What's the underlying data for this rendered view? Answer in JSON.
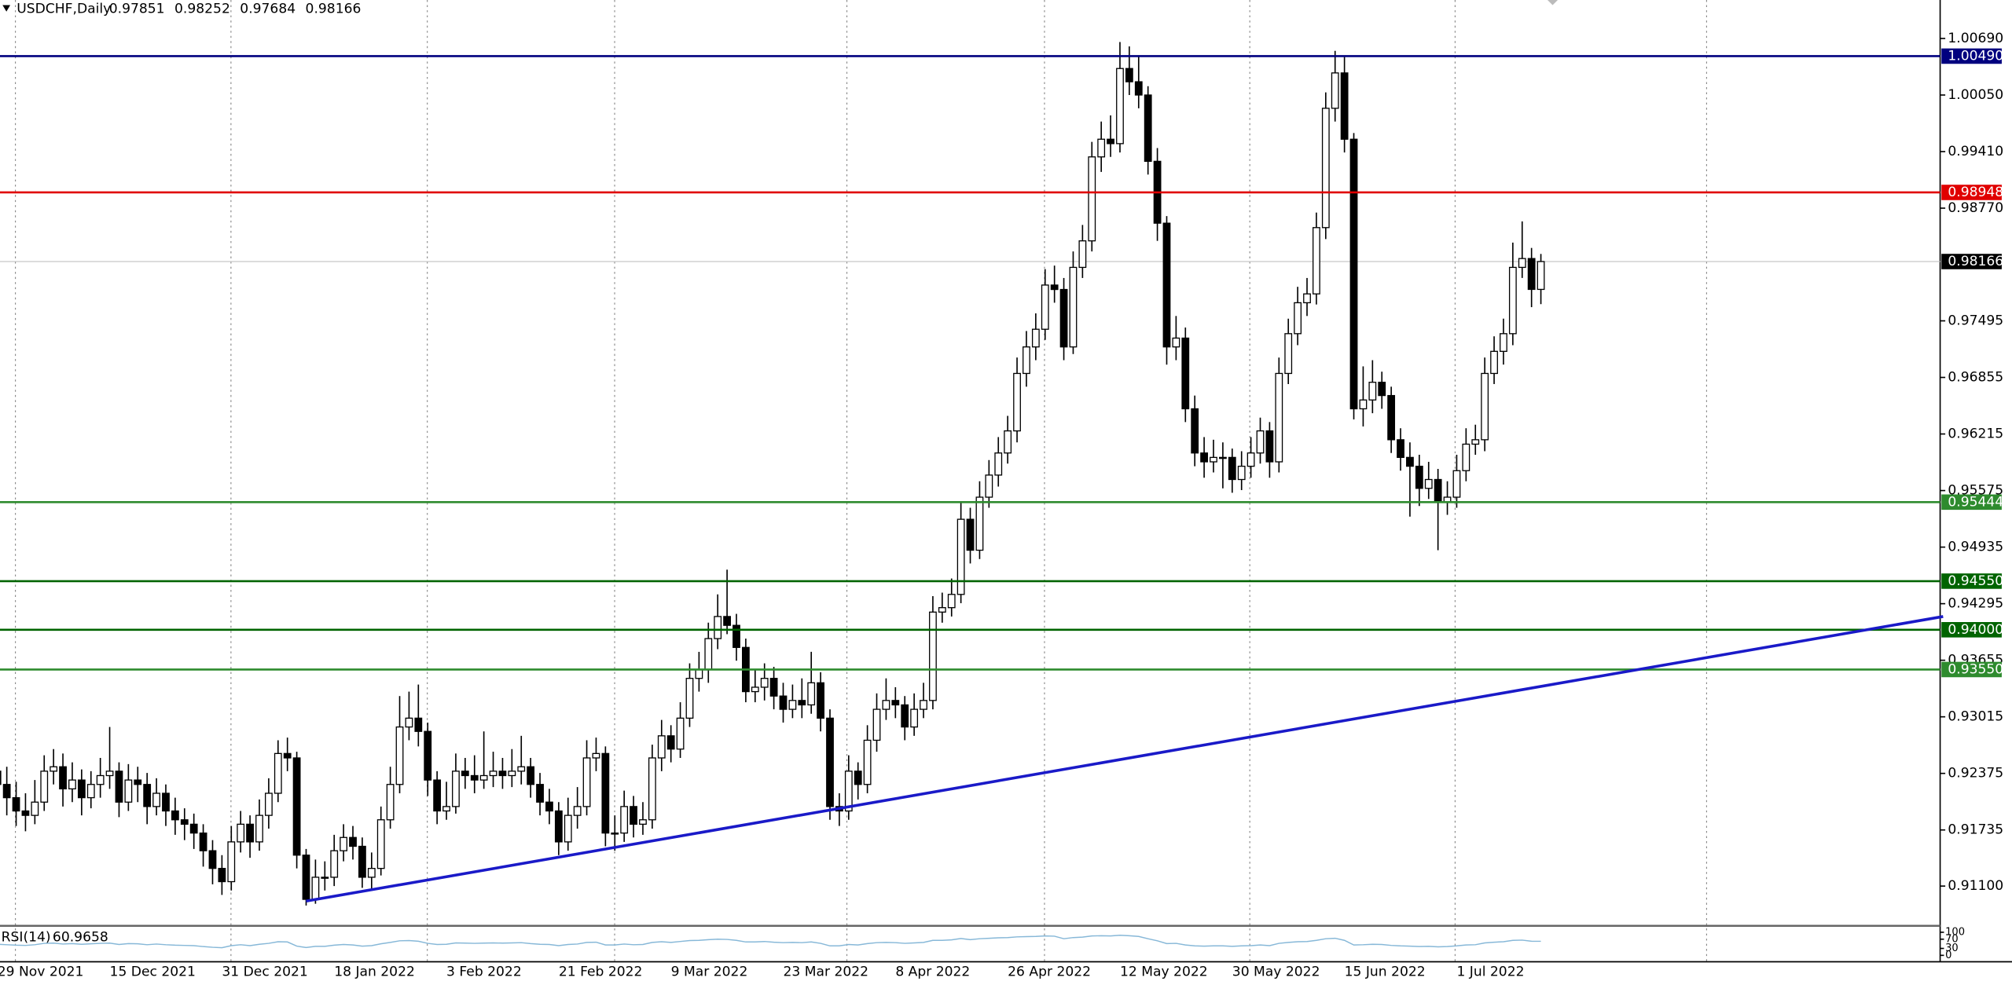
{
  "chart_data": {
    "type": "candlestick",
    "title": "USDCHF,Daily",
    "categories": [
      "29 Nov 2021",
      null,
      null,
      null,
      null,
      null,
      null,
      null,
      null,
      null,
      null,
      null,
      "15 Dec 2021",
      null,
      null,
      null,
      null,
      null,
      null,
      null,
      null,
      null,
      null,
      null,
      "31 Dec 2021",
      null,
      null,
      null,
      null,
      null,
      null,
      null,
      null,
      null,
      null,
      null,
      "18 Jan 2022",
      null,
      null,
      null,
      null,
      null,
      null,
      null,
      null,
      null,
      null,
      null,
      "3 Feb 2022",
      null,
      null,
      null,
      null,
      null,
      null,
      null,
      null,
      null,
      null,
      null,
      "21 Feb 2022",
      null,
      null,
      null,
      null,
      null,
      null,
      null,
      null,
      null,
      null,
      null,
      "9 Mar 2022",
      null,
      null,
      null,
      null,
      null,
      null,
      null,
      null,
      null,
      null,
      null,
      "23 Mar 2022",
      null,
      null,
      null,
      null,
      null,
      null,
      null,
      null,
      null,
      null,
      null,
      "8 Apr 2022",
      null,
      null,
      null,
      null,
      null,
      null,
      null,
      null,
      null,
      null,
      null,
      "26 Apr 2022",
      null,
      null,
      null,
      null,
      null,
      null,
      null,
      null,
      null,
      null,
      null,
      "12 May 2022",
      null,
      null,
      null,
      null,
      null,
      null,
      null,
      null,
      null,
      null,
      null,
      "30 May 2022",
      null,
      null,
      null,
      null,
      null,
      null,
      null,
      null,
      null,
      null,
      null,
      "15 Jun 2022",
      null,
      null,
      null,
      null,
      null,
      null,
      null,
      null,
      null,
      null,
      null,
      "1 Jul 2022",
      null,
      null,
      null,
      null,
      null,
      null,
      null,
      null,
      null
    ],
    "ohlc": [
      [
        0.924,
        0.9262,
        0.9205,
        0.9225
      ],
      [
        0.9225,
        0.9245,
        0.919,
        0.921
      ],
      [
        0.921,
        0.9228,
        0.9178,
        0.9195
      ],
      [
        0.9195,
        0.9215,
        0.9172,
        0.919
      ],
      [
        0.919,
        0.923,
        0.918,
        0.9205
      ],
      [
        0.9205,
        0.9258,
        0.9195,
        0.924
      ],
      [
        0.924,
        0.9265,
        0.9225,
        0.9245
      ],
      [
        0.9245,
        0.926,
        0.92,
        0.922
      ],
      [
        0.922,
        0.925,
        0.9205,
        0.923
      ],
      [
        0.923,
        0.9242,
        0.919,
        0.921
      ],
      [
        0.921,
        0.924,
        0.9198,
        0.9225
      ],
      [
        0.9225,
        0.9255,
        0.921,
        0.9235
      ],
      [
        0.9235,
        0.929,
        0.922,
        0.924
      ],
      [
        0.924,
        0.925,
        0.9188,
        0.9205
      ],
      [
        0.9205,
        0.9248,
        0.9195,
        0.923
      ],
      [
        0.923,
        0.9245,
        0.9205,
        0.9225
      ],
      [
        0.9225,
        0.9238,
        0.918,
        0.92
      ],
      [
        0.92,
        0.9232,
        0.919,
        0.9215
      ],
      [
        0.9215,
        0.9225,
        0.9178,
        0.9195
      ],
      [
        0.9195,
        0.921,
        0.9168,
        0.9185
      ],
      [
        0.9185,
        0.9198,
        0.9162,
        0.918
      ],
      [
        0.918,
        0.9192,
        0.9152,
        0.917
      ],
      [
        0.917,
        0.918,
        0.9132,
        0.915
      ],
      [
        0.915,
        0.9162,
        0.9112,
        0.913
      ],
      [
        0.913,
        0.9145,
        0.91,
        0.9115
      ],
      [
        0.9115,
        0.9178,
        0.9105,
        0.916
      ],
      [
        0.916,
        0.9195,
        0.9148,
        0.918
      ],
      [
        0.918,
        0.919,
        0.9142,
        0.916
      ],
      [
        0.916,
        0.9208,
        0.915,
        0.919
      ],
      [
        0.919,
        0.9232,
        0.9175,
        0.9215
      ],
      [
        0.9215,
        0.9275,
        0.9205,
        0.926
      ],
      [
        0.926,
        0.9278,
        0.924,
        0.9255
      ],
      [
        0.9255,
        0.9262,
        0.913,
        0.9145
      ],
      [
        0.9145,
        0.9152,
        0.9088,
        0.9095
      ],
      [
        0.9095,
        0.914,
        0.909,
        0.912
      ],
      [
        0.912,
        0.9138,
        0.9105,
        0.912
      ],
      [
        0.912,
        0.9168,
        0.911,
        0.915
      ],
      [
        0.915,
        0.918,
        0.9138,
        0.9165
      ],
      [
        0.9165,
        0.9178,
        0.914,
        0.9155
      ],
      [
        0.9155,
        0.9165,
        0.9108,
        0.912
      ],
      [
        0.912,
        0.9148,
        0.9105,
        0.913
      ],
      [
        0.913,
        0.92,
        0.9122,
        0.9185
      ],
      [
        0.9185,
        0.9245,
        0.9175,
        0.9225
      ],
      [
        0.9225,
        0.9325,
        0.9215,
        0.929
      ],
      [
        0.929,
        0.933,
        0.9275,
        0.93
      ],
      [
        0.93,
        0.9338,
        0.9268,
        0.9285
      ],
      [
        0.9285,
        0.9295,
        0.9212,
        0.923
      ],
      [
        0.923,
        0.924,
        0.918,
        0.9195
      ],
      [
        0.9195,
        0.9228,
        0.9185,
        0.92
      ],
      [
        0.92,
        0.926,
        0.9192,
        0.924
      ],
      [
        0.924,
        0.9255,
        0.922,
        0.9235
      ],
      [
        0.9235,
        0.9258,
        0.9215,
        0.923
      ],
      [
        0.923,
        0.9285,
        0.922,
        0.9235
      ],
      [
        0.9235,
        0.9262,
        0.9222,
        0.924
      ],
      [
        0.924,
        0.9255,
        0.922,
        0.9235
      ],
      [
        0.9235,
        0.9265,
        0.9222,
        0.924
      ],
      [
        0.924,
        0.928,
        0.9225,
        0.9245
      ],
      [
        0.9245,
        0.9255,
        0.921,
        0.9225
      ],
      [
        0.9225,
        0.9238,
        0.919,
        0.9205
      ],
      [
        0.9205,
        0.922,
        0.918,
        0.9195
      ],
      [
        0.9195,
        0.9205,
        0.9145,
        0.916
      ],
      [
        0.916,
        0.921,
        0.915,
        0.919
      ],
      [
        0.919,
        0.9222,
        0.9175,
        0.92
      ],
      [
        0.92,
        0.9275,
        0.919,
        0.9255
      ],
      [
        0.9255,
        0.9278,
        0.924,
        0.926
      ],
      [
        0.926,
        0.9268,
        0.9155,
        0.917
      ],
      [
        0.917,
        0.919,
        0.915,
        0.917
      ],
      [
        0.917,
        0.9218,
        0.916,
        0.92
      ],
      [
        0.92,
        0.9212,
        0.9165,
        0.918
      ],
      [
        0.918,
        0.9205,
        0.9168,
        0.9185
      ],
      [
        0.9185,
        0.927,
        0.9175,
        0.9255
      ],
      [
        0.9255,
        0.9298,
        0.924,
        0.928
      ],
      [
        0.928,
        0.9292,
        0.925,
        0.9265
      ],
      [
        0.9265,
        0.9318,
        0.9255,
        0.93
      ],
      [
        0.93,
        0.9362,
        0.929,
        0.9345
      ],
      [
        0.9345,
        0.9375,
        0.933,
        0.9355
      ],
      [
        0.9355,
        0.9408,
        0.934,
        0.939
      ],
      [
        0.939,
        0.944,
        0.9378,
        0.9415
      ],
      [
        0.9415,
        0.9468,
        0.9395,
        0.9405
      ],
      [
        0.9405,
        0.9418,
        0.9365,
        0.938
      ],
      [
        0.938,
        0.939,
        0.9318,
        0.933
      ],
      [
        0.933,
        0.9355,
        0.9318,
        0.9335
      ],
      [
        0.9335,
        0.9362,
        0.932,
        0.9345
      ],
      [
        0.9345,
        0.9358,
        0.931,
        0.9325
      ],
      [
        0.9325,
        0.934,
        0.9295,
        0.931
      ],
      [
        0.931,
        0.9338,
        0.93,
        0.932
      ],
      [
        0.932,
        0.9345,
        0.93,
        0.9315
      ],
      [
        0.9315,
        0.9375,
        0.9305,
        0.934
      ],
      [
        0.934,
        0.9352,
        0.9285,
        0.93
      ],
      [
        0.93,
        0.931,
        0.9185,
        0.92
      ],
      [
        0.92,
        0.9215,
        0.9178,
        0.9195
      ],
      [
        0.9195,
        0.9258,
        0.9185,
        0.924
      ],
      [
        0.924,
        0.925,
        0.9208,
        0.9225
      ],
      [
        0.9225,
        0.9292,
        0.9215,
        0.9275
      ],
      [
        0.9275,
        0.9328,
        0.9262,
        0.931
      ],
      [
        0.931,
        0.9345,
        0.9298,
        0.932
      ],
      [
        0.932,
        0.9335,
        0.93,
        0.9315
      ],
      [
        0.9315,
        0.9325,
        0.9275,
        0.929
      ],
      [
        0.929,
        0.9328,
        0.928,
        0.931
      ],
      [
        0.931,
        0.934,
        0.93,
        0.932
      ],
      [
        0.932,
        0.9438,
        0.931,
        0.942
      ],
      [
        0.942,
        0.9442,
        0.9408,
        0.9425
      ],
      [
        0.9425,
        0.9458,
        0.9415,
        0.944
      ],
      [
        0.944,
        0.9545,
        0.943,
        0.9525
      ],
      [
        0.9525,
        0.9538,
        0.9475,
        0.949
      ],
      [
        0.949,
        0.9568,
        0.948,
        0.955
      ],
      [
        0.955,
        0.9592,
        0.9538,
        0.9575
      ],
      [
        0.9575,
        0.9618,
        0.9562,
        0.96
      ],
      [
        0.96,
        0.9642,
        0.9588,
        0.9625
      ],
      [
        0.9625,
        0.9708,
        0.9612,
        0.969
      ],
      [
        0.969,
        0.9738,
        0.9675,
        0.972
      ],
      [
        0.972,
        0.9758,
        0.9705,
        0.974
      ],
      [
        0.974,
        0.9808,
        0.9728,
        0.979
      ],
      [
        0.979,
        0.9812,
        0.977,
        0.9785
      ],
      [
        0.9785,
        0.9798,
        0.9705,
        0.972
      ],
      [
        0.972,
        0.9828,
        0.9712,
        0.981
      ],
      [
        0.981,
        0.9858,
        0.9798,
        0.984
      ],
      [
        0.984,
        0.9952,
        0.9828,
        0.9935
      ],
      [
        0.9935,
        0.9975,
        0.9918,
        0.9955
      ],
      [
        0.9955,
        0.9982,
        0.9935,
        0.995
      ],
      [
        0.995,
        1.0065,
        0.994,
        1.0035
      ],
      [
        1.0035,
        1.006,
        1.0005,
        1.002
      ],
      [
        1.002,
        1.005,
        0.999,
        1.0005
      ],
      [
        1.0005,
        1.0015,
        0.9915,
        0.993
      ],
      [
        0.993,
        0.9945,
        0.984,
        0.986
      ],
      [
        0.986,
        0.9868,
        0.97,
        0.972
      ],
      [
        0.972,
        0.9755,
        0.9705,
        0.973
      ],
      [
        0.973,
        0.9742,
        0.9635,
        0.965
      ],
      [
        0.965,
        0.9665,
        0.9585,
        0.96
      ],
      [
        0.96,
        0.9618,
        0.9572,
        0.959
      ],
      [
        0.959,
        0.9615,
        0.9578,
        0.9595
      ],
      [
        0.9595,
        0.9612,
        0.956,
        0.9595
      ],
      [
        0.9595,
        0.9605,
        0.9555,
        0.957
      ],
      [
        0.957,
        0.9602,
        0.9558,
        0.9585
      ],
      [
        0.9585,
        0.9618,
        0.9572,
        0.96
      ],
      [
        0.96,
        0.964,
        0.9588,
        0.9625
      ],
      [
        0.9625,
        0.9635,
        0.9572,
        0.959
      ],
      [
        0.959,
        0.9708,
        0.9578,
        0.969
      ],
      [
        0.969,
        0.9752,
        0.9678,
        0.9735
      ],
      [
        0.9735,
        0.9788,
        0.9722,
        0.977
      ],
      [
        0.977,
        0.9798,
        0.9755,
        0.978
      ],
      [
        0.978,
        0.9872,
        0.9768,
        0.9855
      ],
      [
        0.9855,
        1.0008,
        0.9842,
        0.999
      ],
      [
        0.999,
        1.0055,
        0.9975,
        1.003
      ],
      [
        1.003,
        1.0048,
        0.994,
        0.9955
      ],
      [
        0.9955,
        0.9962,
        0.9638,
        0.965
      ],
      [
        0.965,
        0.9698,
        0.963,
        0.966
      ],
      [
        0.966,
        0.9705,
        0.9645,
        0.968
      ],
      [
        0.968,
        0.9692,
        0.965,
        0.9665
      ],
      [
        0.9665,
        0.9675,
        0.96,
        0.9615
      ],
      [
        0.9615,
        0.9628,
        0.958,
        0.9595
      ],
      [
        0.9595,
        0.9612,
        0.9528,
        0.9585
      ],
      [
        0.9585,
        0.9598,
        0.954,
        0.956
      ],
      [
        0.956,
        0.959,
        0.9548,
        0.957
      ],
      [
        0.957,
        0.9582,
        0.949,
        0.9545
      ],
      [
        0.9545,
        0.9568,
        0.953,
        0.955
      ],
      [
        0.955,
        0.9598,
        0.9538,
        0.958
      ],
      [
        0.958,
        0.9628,
        0.9568,
        0.961
      ],
      [
        0.961,
        0.9632,
        0.9598,
        0.9615
      ],
      [
        0.9615,
        0.9708,
        0.9602,
        0.969
      ],
      [
        0.969,
        0.9732,
        0.9678,
        0.9715
      ],
      [
        0.9715,
        0.9752,
        0.97,
        0.9735
      ],
      [
        0.9735,
        0.9838,
        0.9722,
        0.981
      ],
      [
        0.981,
        0.9862,
        0.9798,
        0.982
      ],
      [
        0.982,
        0.9832,
        0.9765,
        0.97851
      ],
      [
        0.97851,
        0.98252,
        0.97684,
        0.98166
      ]
    ],
    "up_color": "#ffffff",
    "down_color": "#000000",
    "wick_color": "#000000",
    "ylim": [
      0.9065,
      1.01125
    ],
    "yticks": [
      {
        "value": 1.0069,
        "label": "1.00690"
      },
      {
        "value": 1.0005,
        "label": "1.00050"
      },
      {
        "value": 0.9941,
        "label": "0.99410"
      },
      {
        "value": 0.9877,
        "label": "0.98770"
      },
      {
        "value": 0.97495,
        "label": "0.97495"
      },
      {
        "value": 0.96855,
        "label": "0.96855"
      },
      {
        "value": 0.96215,
        "label": "0.96215"
      },
      {
        "value": 0.95575,
        "label": "0.95575"
      },
      {
        "value": 0.94935,
        "label": "0.94935"
      },
      {
        "value": 0.94295,
        "label": "0.94295"
      },
      {
        "value": 0.93655,
        "label": "0.93655"
      },
      {
        "value": 0.93015,
        "label": "0.93015"
      },
      {
        "value": 0.92375,
        "label": "0.92375"
      },
      {
        "value": 0.91735,
        "label": "0.91735"
      },
      {
        "value": 0.911,
        "label": "0.91100"
      }
    ],
    "levels": [
      {
        "value": 1.0049,
        "label": "1.00490",
        "color": "#00007f"
      },
      {
        "value": 0.98948,
        "label": "0.98948",
        "color": "#e00000"
      },
      {
        "value": 0.95444,
        "label": "0.95444",
        "color": "#2e8b2e"
      },
      {
        "value": 0.9455,
        "label": "0.94550",
        "color": "#006400"
      },
      {
        "value": 0.94,
        "label": "0.94000",
        "color": "#006400"
      },
      {
        "value": 0.9355,
        "label": "0.93550",
        "color": "#2e8b2e"
      }
    ],
    "trendline": {
      "color": "#1a1ac8",
      "points": [
        [
          33,
          0.9093
        ],
        [
          208,
          0.9415
        ]
      ]
    },
    "rsi": {
      "name": "RSI(14)",
      "color": "#87b8d8",
      "ylim": [
        0,
        100
      ],
      "yticks": [
        0,
        30,
        70,
        100
      ],
      "values": [
        48,
        46,
        44,
        43,
        46,
        52,
        53,
        49,
        51,
        48,
        50,
        52,
        53,
        47,
        51,
        50,
        46,
        49,
        46,
        44,
        43,
        42,
        38,
        35,
        33,
        42,
        46,
        42,
        48,
        52,
        59,
        58,
        40,
        34,
        39,
        39,
        44,
        47,
        45,
        40,
        42,
        50,
        56,
        63,
        64,
        61,
        52,
        47,
        48,
        54,
        53,
        52,
        53,
        54,
        53,
        54,
        55,
        51,
        48,
        47,
        42,
        47,
        49,
        56,
        57,
        45,
        45,
        49,
        46,
        47,
        56,
        59,
        56,
        60,
        64,
        65,
        68,
        70,
        69,
        65,
        58,
        58,
        60,
        57,
        55,
        56,
        55,
        58,
        52,
        41,
        41,
        47,
        45,
        51,
        55,
        56,
        55,
        52,
        54,
        56,
        65,
        65,
        67,
        73,
        68,
        72,
        74,
        76,
        77,
        80,
        81,
        82,
        84,
        83,
        72,
        77,
        79,
        84,
        85,
        84,
        87,
        85,
        82,
        72,
        63,
        51,
        52,
        45,
        41,
        40,
        41,
        41,
        39,
        41,
        42,
        45,
        42,
        52,
        56,
        59,
        60,
        65,
        72,
        74,
        65,
        45,
        46,
        48,
        47,
        43,
        41,
        40,
        38,
        39,
        37,
        38,
        41,
        45,
        46,
        54,
        57,
        59,
        65,
        66,
        61,
        60.9658
      ]
    }
  }
}
